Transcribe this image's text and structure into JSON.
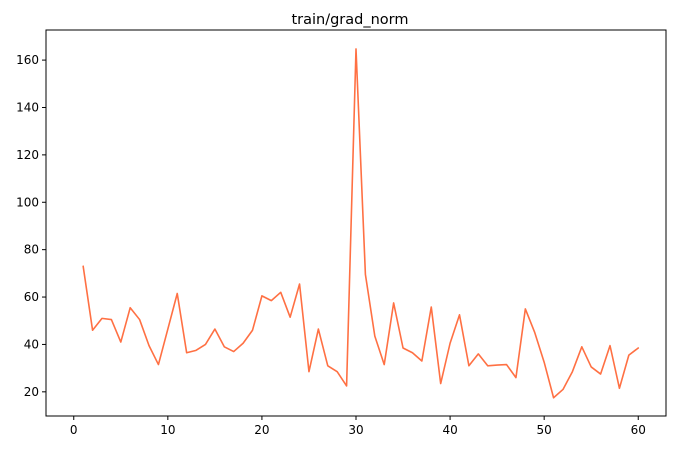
{
  "chart_data": {
    "type": "line",
    "title": "train/grad_norm",
    "xlabel": "",
    "ylabel": "",
    "xlim": [
      -2.95,
      62.95
    ],
    "ylim": [
      9.8,
      172.7
    ],
    "xticks": [
      0,
      10,
      20,
      30,
      40,
      50,
      60
    ],
    "yticks": [
      20,
      40,
      60,
      80,
      100,
      120,
      140,
      160
    ],
    "grid": false,
    "legend": "none",
    "series": [
      {
        "color": "#ff7043",
        "x": [
          1,
          2,
          3,
          4,
          5,
          6,
          7,
          8,
          9,
          10,
          11,
          12,
          13,
          14,
          15,
          16,
          17,
          18,
          19,
          20,
          21,
          22,
          23,
          24,
          25,
          26,
          27,
          28,
          29,
          30,
          31,
          32,
          33,
          34,
          35,
          36,
          37,
          38,
          39,
          40,
          41,
          42,
          43,
          44,
          45,
          46,
          47,
          48,
          49,
          50,
          51,
          52,
          53,
          54,
          55,
          56,
          57,
          58,
          59,
          60
        ],
        "y": [
          73,
          46,
          51,
          50.5,
          41,
          55.5,
          50.5,
          39.5,
          31.5,
          46.5,
          61.5,
          36.5,
          37.5,
          40,
          46.5,
          39,
          37,
          40.5,
          46,
          60.5,
          58.5,
          62,
          51.5,
          65.5,
          28.5,
          46.5,
          31,
          28.5,
          22.5,
          164.7,
          69.5,
          43.5,
          31.5,
          57.5,
          38.5,
          36.5,
          33,
          55.8,
          23.5,
          40.5,
          52.5,
          31,
          36,
          31,
          31.3,
          31.5,
          26,
          55,
          45,
          32.5,
          17.5,
          21,
          28.5,
          39,
          30.5,
          27.5,
          39.5,
          21.5,
          35.5,
          38.5
        ]
      }
    ]
  }
}
